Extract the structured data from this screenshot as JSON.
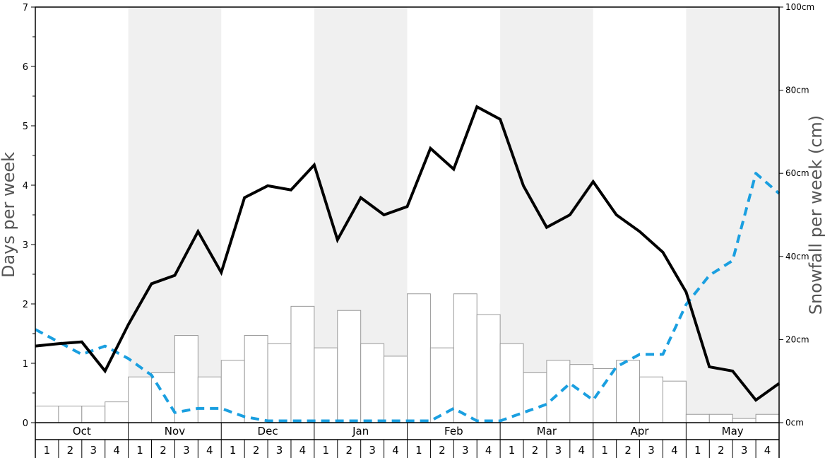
{
  "chart_data": {
    "type": "bar+line",
    "months": [
      "Oct",
      "Nov",
      "Dec",
      "Jan",
      "Feb",
      "Mar",
      "Apr",
      "May"
    ],
    "week_labels": [
      "1",
      "2",
      "3",
      "4"
    ],
    "ylabel_left": "Days per week",
    "ylabel_right": "Snowfall per week (cm)",
    "ylim_left": [
      0,
      7
    ],
    "ylim_right": [
      0,
      100
    ],
    "left_ticks": [
      "0",
      "1",
      "2",
      "3",
      "4",
      "5",
      "6",
      "7"
    ],
    "right_ticks": [
      "0cm",
      "20cm",
      "40cm",
      "60cm",
      "80cm",
      "100cm"
    ],
    "snowfall_bars": [
      4,
      4,
      4,
      5,
      11,
      12,
      21,
      11,
      15,
      21,
      19,
      28,
      18,
      27,
      19,
      16,
      31,
      18,
      31,
      26,
      19,
      12,
      15,
      14,
      13,
      15,
      11,
      10,
      2,
      2,
      1,
      2
    ],
    "days_line": [
      1.29,
      1.33,
      1.36,
      0.87,
      1.65,
      2.34,
      2.48,
      3.22,
      2.53,
      3.79,
      3.99,
      3.92,
      4.34,
      3.08,
      3.79,
      3.5,
      3.64,
      4.62,
      4.27,
      5.32,
      5.11,
      3.99,
      3.29,
      3.5,
      4.06,
      3.5,
      3.22,
      2.87,
      2.2,
      0.94,
      0.87,
      0.38,
      0.66
    ],
    "dashed_line": [
      1.57,
      1.36,
      1.15,
      1.29,
      1.08,
      0.8,
      0.17,
      0.24,
      0.24,
      0.1,
      0.03,
      0.03,
      0.03,
      0.03,
      0.03,
      0.03,
      0.03,
      0.03,
      0.24,
      0.03,
      0.03,
      0.17,
      0.31,
      0.66,
      0.38,
      0.94,
      1.15,
      1.15,
      1.99,
      2.48,
      2.73,
      4.2,
      3.86
    ],
    "colors": {
      "days_line": "#000000",
      "dashed_line": "#1a9fe0",
      "bar_fill": "#ffffff",
      "bar_stroke": "#999999",
      "band_shade": "#f0f0f0"
    }
  }
}
